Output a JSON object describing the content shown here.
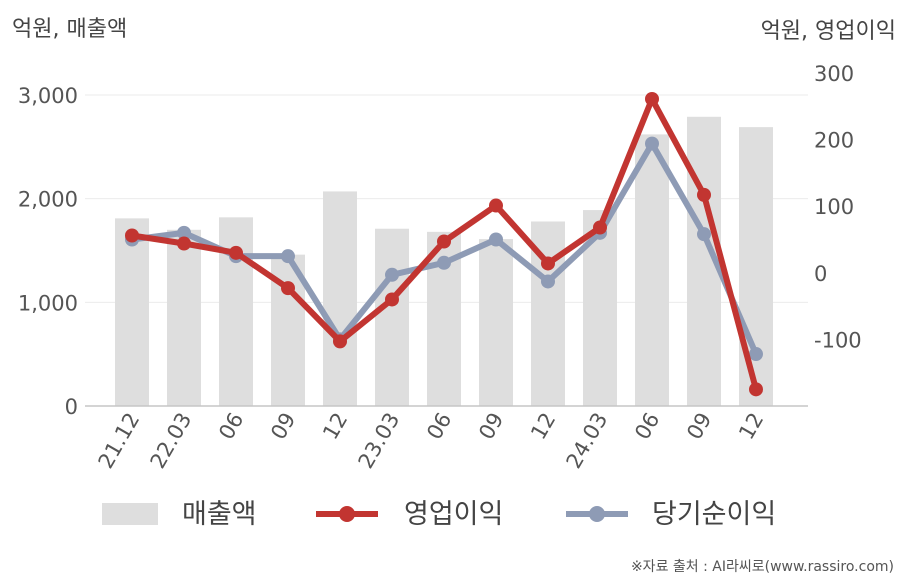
{
  "chart_data": {
    "type": "bar+line",
    "left_axis": {
      "unit_label": "억원, 매출액",
      "ylim": [
        0,
        3000
      ],
      "ticks": [
        0,
        1000,
        2000,
        3000
      ],
      "tick_labels": [
        "0",
        "1,000",
        "2,000",
        "3,000"
      ]
    },
    "right_axis": {
      "unit_label": "억원, 영업이익",
      "ylim": [
        -200,
        300
      ],
      "ticks": [
        -100,
        0,
        100,
        200,
        300
      ],
      "tick_labels": [
        "-100",
        "0",
        "100",
        "200",
        "300"
      ]
    },
    "categories": [
      "21.12",
      "22.03",
      "06",
      "09",
      "12",
      "23.03",
      "06",
      "09",
      "12",
      "24.03",
      "06",
      "09",
      "12"
    ],
    "series": [
      {
        "name": "매출액",
        "type": "bar",
        "axis": "left",
        "color": "#dedede",
        "values": [
          1810,
          1700,
          1820,
          1460,
          2070,
          1710,
          1680,
          1610,
          1780,
          1890,
          2620,
          2790,
          2690
        ]
      },
      {
        "name": "영업이익",
        "type": "line",
        "axis": "right",
        "color": "#c23531",
        "values": [
          56,
          44,
          30,
          -23,
          -103,
          -40,
          47,
          101,
          14,
          68,
          261,
          117,
          -175
        ]
      },
      {
        "name": "당기순이익",
        "type": "line",
        "axis": "right",
        "color": "#8e9bb5",
        "values": [
          50,
          60,
          25,
          25,
          -100,
          -3,
          15,
          50,
          -13,
          60,
          194,
          58,
          -122
        ]
      }
    ],
    "legend": {
      "placement": "bottom"
    },
    "grid": true
  },
  "source_note": "※자료 출처 : AI라씨로(www.rassiro.com)"
}
